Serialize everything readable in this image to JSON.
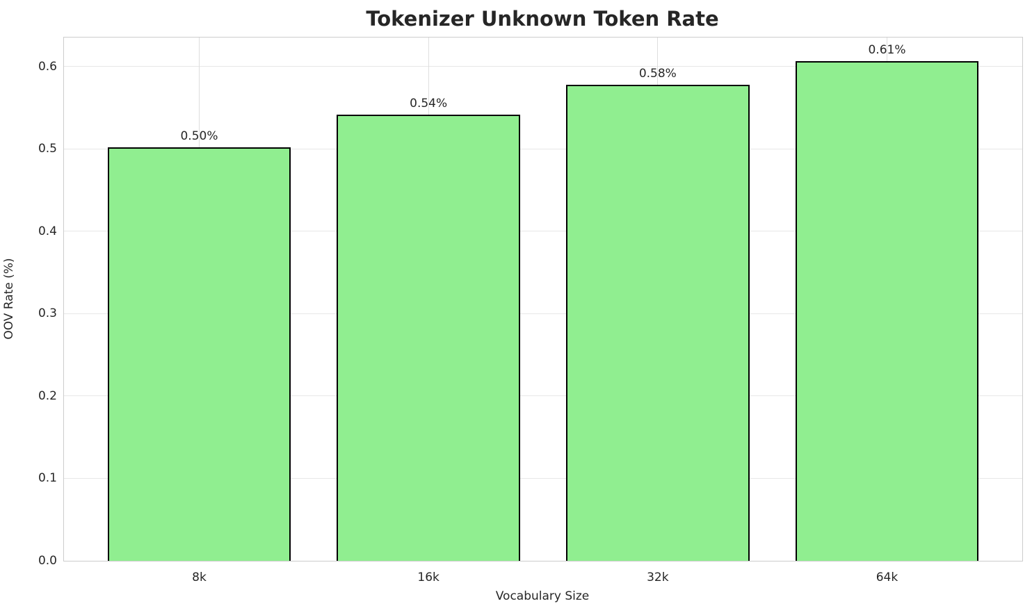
{
  "chart_data": {
    "type": "bar",
    "title": "Tokenizer Unknown Token Rate",
    "xlabel": "Vocabulary Size",
    "ylabel": "OOV Rate (%)",
    "categories": [
      "8k",
      "16k",
      "32k",
      "64k"
    ],
    "values": [
      0.502,
      0.541,
      0.578,
      0.606
    ],
    "bar_labels": [
      "0.50%",
      "0.54%",
      "0.58%",
      "0.61%"
    ],
    "ytick_labels": [
      "0.0",
      "0.1",
      "0.2",
      "0.3",
      "0.4",
      "0.5",
      "0.6"
    ],
    "yticks": [
      0.0,
      0.1,
      0.2,
      0.3,
      0.4,
      0.5,
      0.6
    ],
    "ylim": [
      0,
      0.635
    ],
    "grid": true,
    "legend": "none",
    "bar_width_fraction": 0.8,
    "colors": {
      "bar_fill": "#90EE90",
      "bar_edge": "#000000",
      "grid_horizontal": "#e7e7e7",
      "grid_vertical": "#dedede",
      "spine": "#cccccc",
      "text": "#262626"
    }
  }
}
